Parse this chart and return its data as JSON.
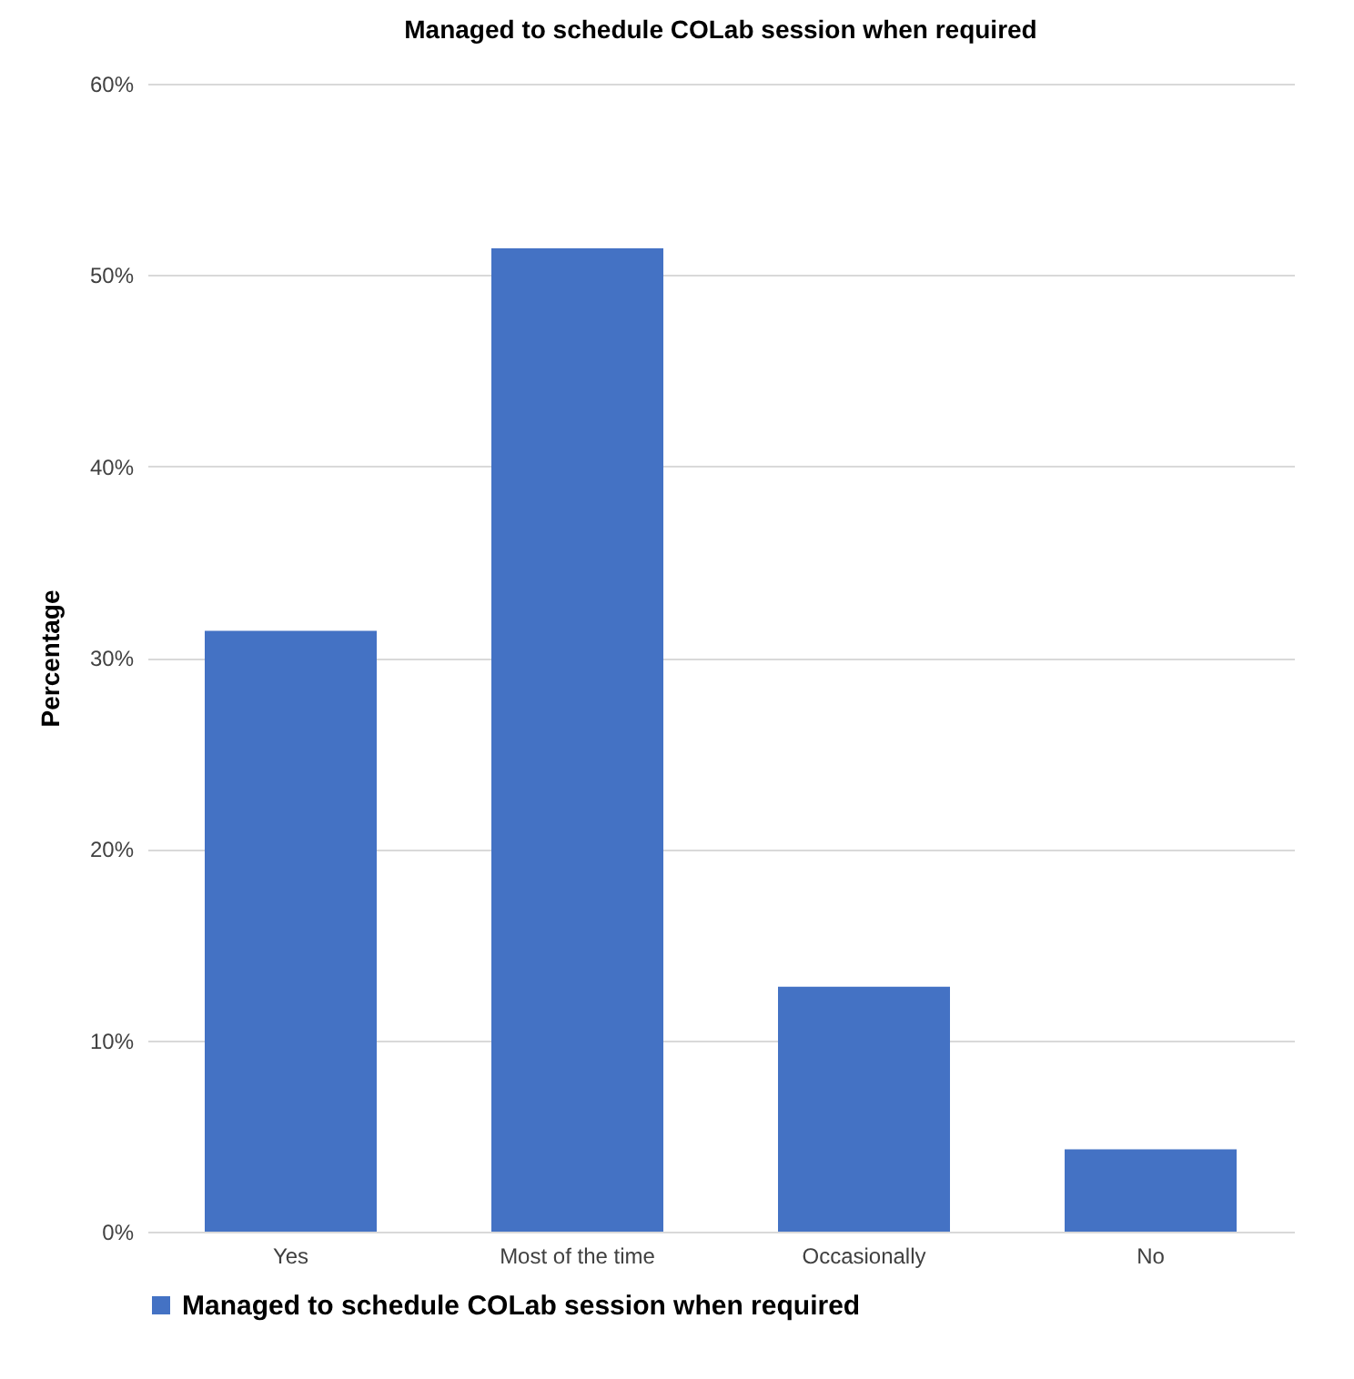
{
  "chart_data": {
    "type": "bar",
    "title": "Managed to schedule COLab session when required",
    "ylabel": "Percentage",
    "categories": [
      "Yes",
      "Most of the time",
      "Occasionally",
      "No"
    ],
    "series": [
      {
        "name": "Managed to schedule COLab session when required",
        "color": "#4472c4",
        "values": [
          31.4,
          51.4,
          12.8,
          4.3
        ]
      }
    ],
    "ylim": [
      0,
      60
    ],
    "yticks": [
      {
        "value": 0,
        "label": "0%"
      },
      {
        "value": 10,
        "label": "10%"
      },
      {
        "value": 20,
        "label": "20%"
      },
      {
        "value": 30,
        "label": "30%"
      },
      {
        "value": 40,
        "label": "40%"
      },
      {
        "value": 50,
        "label": "50%"
      },
      {
        "value": 60,
        "label": "60%"
      }
    ],
    "grid": "y",
    "legend": "bottom"
  }
}
